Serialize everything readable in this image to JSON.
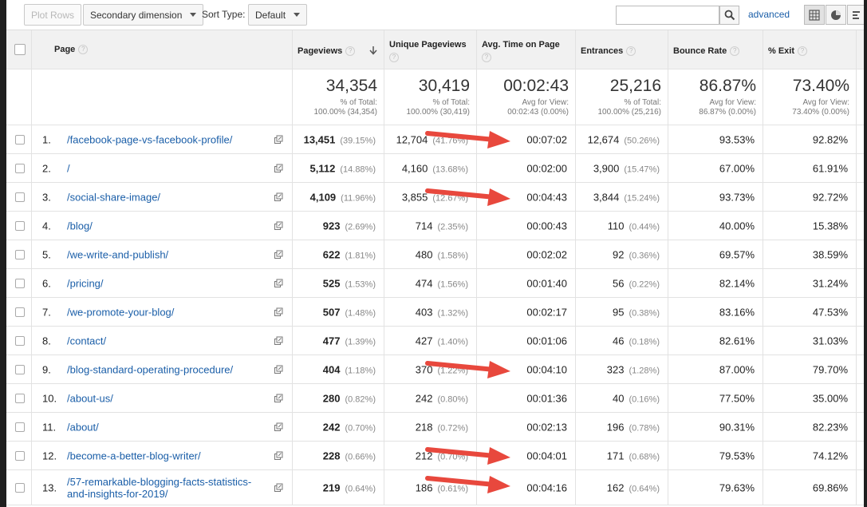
{
  "toolbar": {
    "plot_rows": "Plot Rows",
    "secondary_dimension": "Secondary dimension",
    "sort_type_label": "Sort Type:",
    "sort_type_value": "Default",
    "search_value": "",
    "advanced": "advanced"
  },
  "icons": {
    "search": "search-icon",
    "table_view": "table-grid-icon",
    "pie_view": "pie-chart-icon",
    "performance_view": "bar-list-icon",
    "open_page": "external-link-icon",
    "sort": "sort-down-arrow-icon"
  },
  "colors": {
    "link": "#1a5ea8",
    "arrow": "#e8483d"
  },
  "columns": {
    "page": "Page",
    "pageviews": "Pageviews",
    "unique_pageviews": "Unique Pageviews",
    "avg_time": "Avg. Time on Page",
    "entrances": "Entrances",
    "bounce_rate": "Bounce Rate",
    "exit": "% Exit",
    "help": "?"
  },
  "summary": {
    "pageviews": {
      "value": "34,354",
      "line1": "% of Total:",
      "line2": "100.00% (34,354)"
    },
    "unique_pageviews": {
      "value": "30,419",
      "line1": "% of Total:",
      "line2": "100.00% (30,419)"
    },
    "avg_time": {
      "value": "00:02:43",
      "line1": "Avg for View:",
      "line2": "00:02:43 (0.00%)"
    },
    "entrances": {
      "value": "25,216",
      "line1": "% of Total:",
      "line2": "100.00% (25,216)"
    },
    "bounce_rate": {
      "value": "86.87%",
      "line1": "Avg for View:",
      "line2": "86.87% (0.00%)"
    },
    "exit": {
      "value": "73.40%",
      "line1": "Avg for View:",
      "line2": "73.40% (0.00%)"
    }
  },
  "rows": [
    {
      "index": "1.",
      "page": "/facebook-page-vs-facebook-profile/",
      "pageviews": "13,451",
      "pageviews_pct": "(39.15%)",
      "unique": "12,704",
      "unique_pct": "(41.76%)",
      "avg_time": "00:07:02",
      "entrances": "12,674",
      "entrances_pct": "(50.26%)",
      "bounce": "93.53%",
      "exit": "92.82%"
    },
    {
      "index": "2.",
      "page": "/",
      "pageviews": "5,112",
      "pageviews_pct": "(14.88%)",
      "unique": "4,160",
      "unique_pct": "(13.68%)",
      "avg_time": "00:02:00",
      "entrances": "3,900",
      "entrances_pct": "(15.47%)",
      "bounce": "67.00%",
      "exit": "61.91%"
    },
    {
      "index": "3.",
      "page": "/social-share-image/",
      "pageviews": "4,109",
      "pageviews_pct": "(11.96%)",
      "unique": "3,855",
      "unique_pct": "(12.67%)",
      "avg_time": "00:04:43",
      "entrances": "3,844",
      "entrances_pct": "(15.24%)",
      "bounce": "93.73%",
      "exit": "92.72%"
    },
    {
      "index": "4.",
      "page": "/blog/",
      "pageviews": "923",
      "pageviews_pct": "(2.69%)",
      "unique": "714",
      "unique_pct": "(2.35%)",
      "avg_time": "00:00:43",
      "entrances": "110",
      "entrances_pct": "(0.44%)",
      "bounce": "40.00%",
      "exit": "15.38%"
    },
    {
      "index": "5.",
      "page": "/we-write-and-publish/",
      "pageviews": "622",
      "pageviews_pct": "(1.81%)",
      "unique": "480",
      "unique_pct": "(1.58%)",
      "avg_time": "00:02:02",
      "entrances": "92",
      "entrances_pct": "(0.36%)",
      "bounce": "69.57%",
      "exit": "38.59%"
    },
    {
      "index": "6.",
      "page": "/pricing/",
      "pageviews": "525",
      "pageviews_pct": "(1.53%)",
      "unique": "474",
      "unique_pct": "(1.56%)",
      "avg_time": "00:01:40",
      "entrances": "56",
      "entrances_pct": "(0.22%)",
      "bounce": "82.14%",
      "exit": "31.24%"
    },
    {
      "index": "7.",
      "page": "/we-promote-your-blog/",
      "pageviews": "507",
      "pageviews_pct": "(1.48%)",
      "unique": "403",
      "unique_pct": "(1.32%)",
      "avg_time": "00:02:17",
      "entrances": "95",
      "entrances_pct": "(0.38%)",
      "bounce": "83.16%",
      "exit": "47.53%"
    },
    {
      "index": "8.",
      "page": "/contact/",
      "pageviews": "477",
      "pageviews_pct": "(1.39%)",
      "unique": "427",
      "unique_pct": "(1.40%)",
      "avg_time": "00:01:06",
      "entrances": "46",
      "entrances_pct": "(0.18%)",
      "bounce": "82.61%",
      "exit": "31.03%"
    },
    {
      "index": "9.",
      "page": "/blog-standard-operating-procedure/",
      "pageviews": "404",
      "pageviews_pct": "(1.18%)",
      "unique": "370",
      "unique_pct": "(1.22%)",
      "avg_time": "00:04:10",
      "entrances": "323",
      "entrances_pct": "(1.28%)",
      "bounce": "87.00%",
      "exit": "79.70%"
    },
    {
      "index": "10.",
      "page": "/about-us/",
      "pageviews": "280",
      "pageviews_pct": "(0.82%)",
      "unique": "242",
      "unique_pct": "(0.80%)",
      "avg_time": "00:01:36",
      "entrances": "40",
      "entrances_pct": "(0.16%)",
      "bounce": "77.50%",
      "exit": "35.00%"
    },
    {
      "index": "11.",
      "page": "/about/",
      "pageviews": "242",
      "pageviews_pct": "(0.70%)",
      "unique": "218",
      "unique_pct": "(0.72%)",
      "avg_time": "00:02:13",
      "entrances": "196",
      "entrances_pct": "(0.78%)",
      "bounce": "90.31%",
      "exit": "82.23%"
    },
    {
      "index": "12.",
      "page": "/become-a-better-blog-writer/",
      "pageviews": "228",
      "pageviews_pct": "(0.66%)",
      "unique": "212",
      "unique_pct": "(0.70%)",
      "avg_time": "00:04:01",
      "entrances": "171",
      "entrances_pct": "(0.68%)",
      "bounce": "79.53%",
      "exit": "74.12%"
    },
    {
      "index": "13.",
      "page": "/57-remarkable-blogging-facts-statistics-and-insights-for-2019/",
      "pageviews": "219",
      "pageviews_pct": "(0.64%)",
      "unique": "186",
      "unique_pct": "(0.61%)",
      "avg_time": "00:04:16",
      "entrances": "162",
      "entrances_pct": "(0.64%)",
      "bounce": "79.63%",
      "exit": "69.86%"
    }
  ],
  "highlighted_rows": [
    0,
    2,
    8,
    11,
    12
  ]
}
